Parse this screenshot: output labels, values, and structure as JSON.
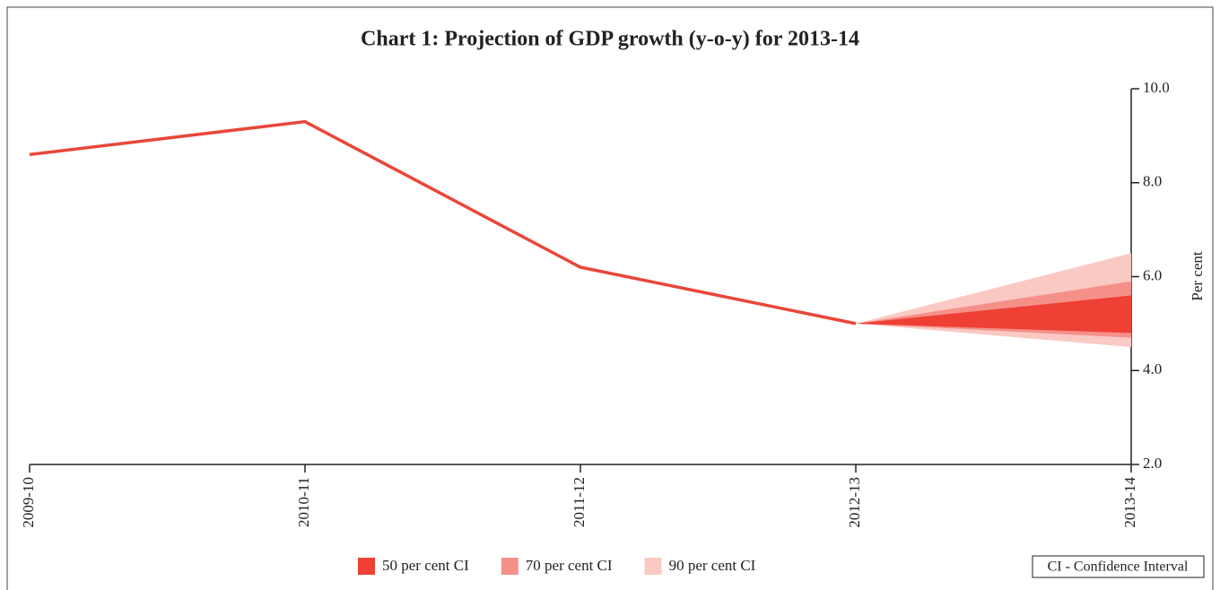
{
  "chart_data": {
    "type": "fan",
    "title": "Chart 1: Projection of GDP growth (y-o-y) for 2013-14",
    "ylabel": "Per cent",
    "categories": [
      "2009-10",
      "2010-11",
      "2011-12",
      "2012-13",
      "2013-14"
    ],
    "series": [
      {
        "color": "#e8473b",
        "values": [
          8.6,
          9.3,
          6.2,
          5.0,
          null
        ]
      }
    ],
    "bands": [
      {
        "name": "90 per cent CI",
        "color": "#fbc9c4",
        "lower": 4.5,
        "upper": 6.5
      },
      {
        "name": "70 per cent CI",
        "color": "#f59089",
        "lower": 4.7,
        "upper": 5.9
      },
      {
        "name": "50 per cent CI",
        "color": "#ee4035",
        "lower": 4.8,
        "upper": 5.6
      }
    ],
    "ylim": [
      2,
      10
    ],
    "yticks": [
      {
        "value": 2,
        "label": "2.0"
      },
      {
        "value": 4,
        "label": "4.0"
      },
      {
        "value": 6,
        "label": "6.0"
      },
      {
        "value": 8,
        "label": "8.0"
      },
      {
        "value": 10,
        "label": "10.0"
      }
    ],
    "annotation": "CI - Confidence Interval"
  }
}
